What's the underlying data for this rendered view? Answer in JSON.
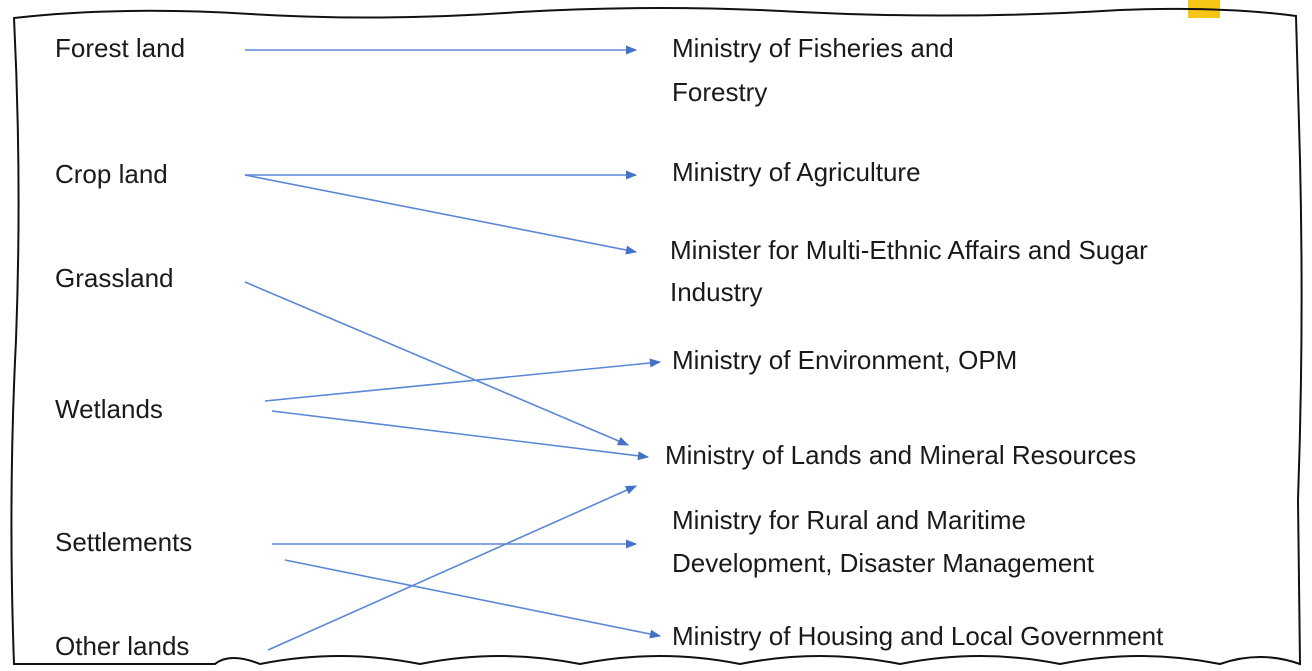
{
  "sources": [
    {
      "label": "Forest land"
    },
    {
      "label": "Crop land"
    },
    {
      "label": "Grassland"
    },
    {
      "label": "Wetlands"
    },
    {
      "label": "Settlements"
    },
    {
      "label": "Other lands"
    }
  ],
  "ministries": [
    {
      "lines": [
        "Ministry of Fisheries and",
        "Forestry"
      ]
    },
    {
      "lines": [
        "Ministry of Agriculture"
      ]
    },
    {
      "lines": [
        "Minister for Multi-Ethnic Affairs and Sugar",
        "Industry"
      ]
    },
    {
      "lines": [
        "Ministry of Environment, OPM"
      ]
    },
    {
      "lines": [
        "Ministry of Lands and Mineral Resources"
      ]
    },
    {
      "lines": [
        "Ministry for Rural and Maritime",
        "Development, Disaster Management"
      ]
    },
    {
      "lines": [
        "Ministry of Housing and Local Government"
      ]
    }
  ]
}
